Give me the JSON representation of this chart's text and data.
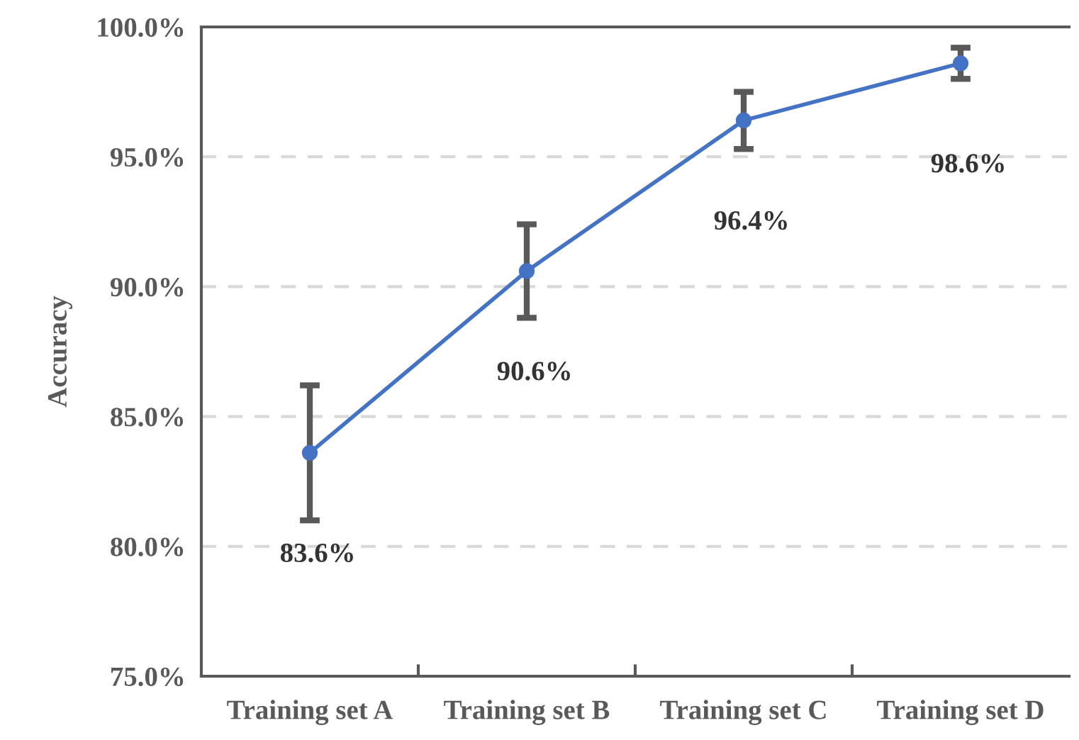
{
  "chart_data": {
    "type": "line",
    "ylabel": "Accuracy",
    "categories": [
      "Training set A",
      "Training set B",
      "Training set C",
      "Training set D"
    ],
    "series": [
      {
        "color": "#4472c4",
        "values": [
          83.6,
          90.6,
          96.4,
          98.6
        ],
        "errors": [
          [
            81.0,
            86.2
          ],
          [
            88.8,
            92.4
          ],
          [
            95.3,
            97.5
          ],
          [
            98.0,
            99.2
          ]
        ],
        "value_labels": [
          "83.6%",
          "90.6%",
          "96.4%",
          "98.6%"
        ]
      }
    ],
    "ylim": [
      75,
      100
    ],
    "yticks": [
      {
        "value": 75,
        "label": "75.0%"
      },
      {
        "value": 80,
        "label": "80.0%"
      },
      {
        "value": 85,
        "label": "85.0%"
      },
      {
        "value": 90,
        "label": "90.0%"
      },
      {
        "value": 95,
        "label": "95.0%"
      },
      {
        "value": 100,
        "label": "100.0%"
      }
    ],
    "grid": "y",
    "marker": "circle",
    "line_style": "solid"
  }
}
